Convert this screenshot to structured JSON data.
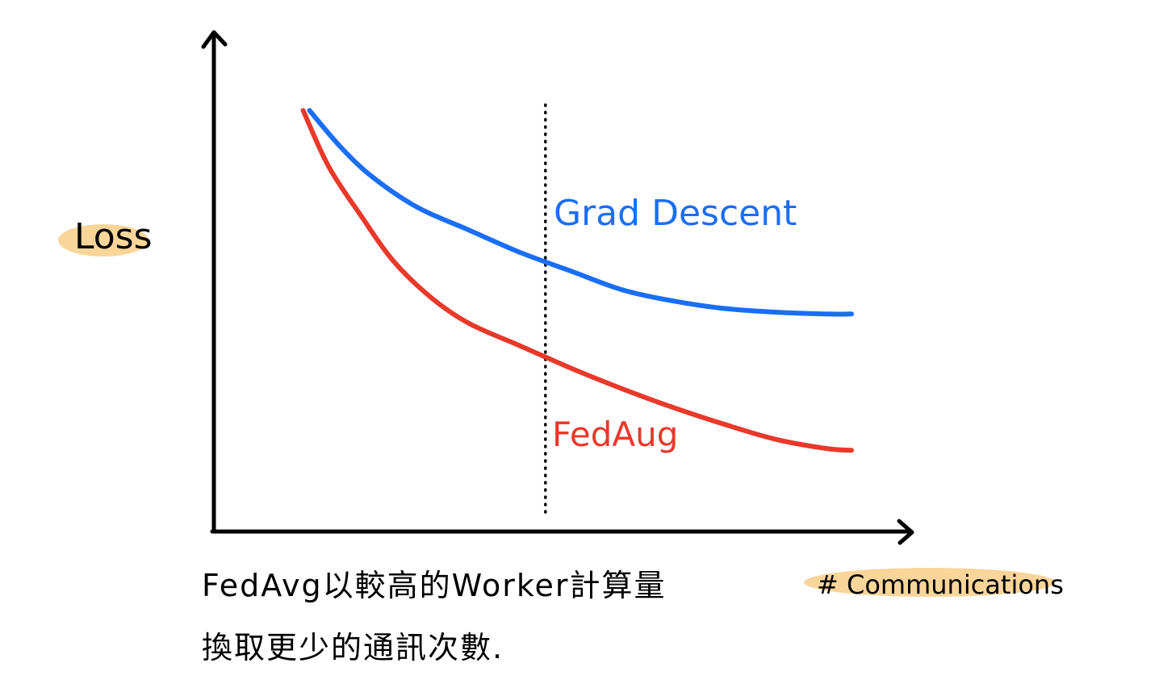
{
  "chart_data": {
    "type": "line",
    "ylabel": "Loss",
    "xlabel": "# Communications",
    "xlim": [
      0,
      100
    ],
    "ylim": [
      0,
      100
    ],
    "grid": false,
    "legend": "inline labels",
    "series": [
      {
        "name": "Grad Descent",
        "color": "#1a6ef5",
        "x": [
          15,
          20,
          25,
          32,
          40,
          48,
          56,
          64,
          72,
          80,
          88,
          96,
          100
        ],
        "y": [
          100,
          90,
          82,
          74,
          68,
          62,
          57,
          52,
          49,
          47,
          46,
          45.5,
          45.5
        ]
      },
      {
        "name": "FedAug",
        "color": "#e8392a",
        "x": [
          14,
          18,
          23,
          28,
          34,
          40,
          48,
          56,
          64,
          72,
          80,
          88,
          96,
          100
        ],
        "y": [
          100,
          85,
          72,
          60,
          50,
          43,
          37,
          31,
          25.5,
          20.5,
          16,
          12,
          9.5,
          9
        ]
      }
    ],
    "annotations": [
      {
        "type": "vline",
        "x": 52,
        "style": "dotted"
      }
    ]
  },
  "caption": {
    "line1": "FedAvg以較高的Worker計算量",
    "line2": "換取更少的通訊次數."
  }
}
